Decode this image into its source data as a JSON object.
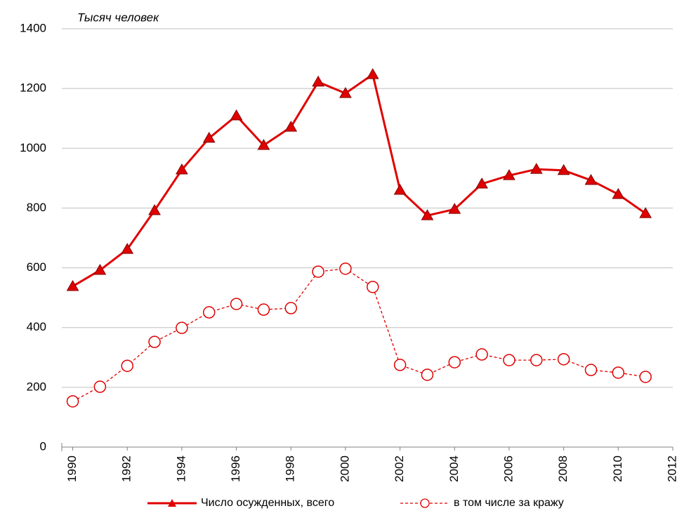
{
  "chart_data": {
    "type": "line",
    "y_label": "Тысяч  человек",
    "x": [
      1990,
      1991,
      1992,
      1993,
      1994,
      1995,
      1996,
      1997,
      1998,
      1999,
      2000,
      2001,
      2002,
      2003,
      2004,
      2005,
      2006,
      2007,
      2008,
      2009,
      2010,
      2011
    ],
    "series": [
      {
        "name": "Число осужденных, всего",
        "color": "#e00000",
        "marker": "triangle",
        "line_style": "solid",
        "values": [
          538,
          592,
          662,
          792,
          928,
          1034,
          1109,
          1010,
          1071,
          1222,
          1184,
          1247,
          860,
          775,
          796,
          881,
          909,
          930,
          926,
          893,
          846,
          782
        ]
      },
      {
        "name": "в том числе за кражу",
        "color": "#e00000",
        "marker": "circle",
        "line_style": "dashed",
        "values": [
          153,
          202,
          272,
          352,
          399,
          451,
          479,
          460,
          465,
          587,
          597,
          536,
          275,
          242,
          284,
          310,
          291,
          291,
          294,
          258,
          249,
          235
        ]
      }
    ],
    "xlim": [
      1989.6,
      2012
    ],
    "xticks": [
      1990,
      1992,
      1994,
      1996,
      1998,
      2000,
      2002,
      2004,
      2006,
      2008,
      2010,
      2012
    ],
    "ylim": [
      0,
      1400
    ],
    "yticks": [
      0,
      200,
      400,
      600,
      800,
      1000,
      1200,
      1400
    ],
    "grid": true,
    "legend": "bottom"
  }
}
